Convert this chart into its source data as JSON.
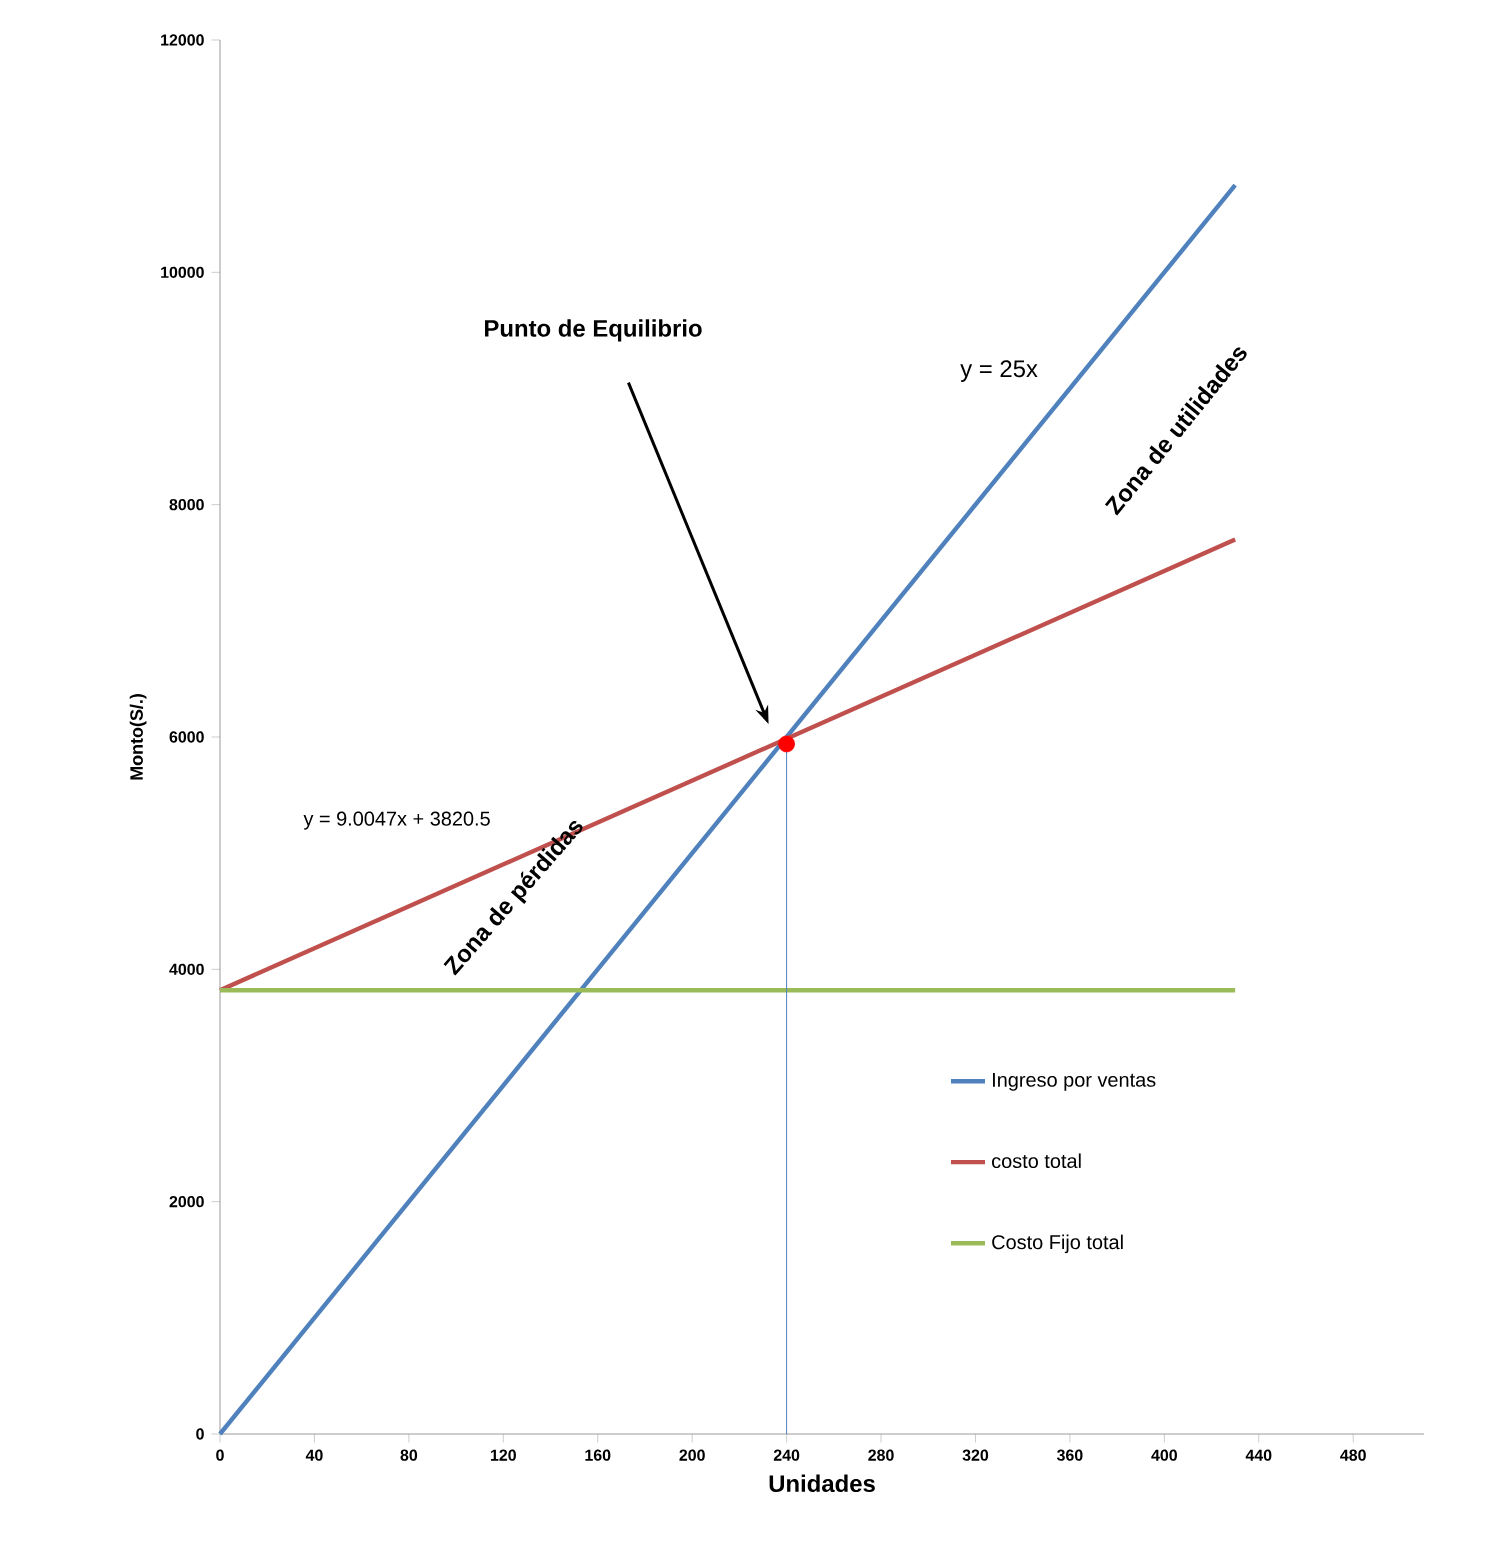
{
  "chart_data": {
    "type": "line",
    "xlabel": "Unidades",
    "ylabel": "Monto(S/.)",
    "xlim": [
      0,
      510
    ],
    "ylim": [
      0,
      12000
    ],
    "xticks": [
      0,
      40,
      80,
      120,
      160,
      200,
      240,
      280,
      320,
      360,
      400,
      440,
      480
    ],
    "yticks": [
      0,
      2000,
      4000,
      6000,
      8000,
      10000,
      12000
    ],
    "grid": false,
    "legend": "bottom right",
    "series": [
      {
        "name": "Ingreso por ventas",
        "color": "#4f81bd",
        "x": [
          0,
          430
        ],
        "values": [
          0,
          10750
        ]
      },
      {
        "name": "costo total",
        "color": "#c0504d",
        "x": [
          0,
          430
        ],
        "values": [
          3820,
          7700
        ]
      },
      {
        "name": "Costo Fijo total",
        "color": "#9bbb59",
        "x": [
          0,
          430
        ],
        "values": [
          3820,
          3820
        ]
      },
      {
        "type": "scatter",
        "marker": "circle",
        "color": "#ff0000",
        "x": [
          240
        ],
        "values": [
          5940
        ]
      },
      {
        "type": "line",
        "color": "#4f81bd",
        "x": [
          240,
          240
        ],
        "values": [
          0,
          5940
        ]
      }
    ],
    "annotations": [
      "Punto de Equilibrio",
      "y = 25x",
      "Zona de utilidades",
      "y = 9.0047x + 3820.5",
      "Zona de pérdidas"
    ]
  }
}
